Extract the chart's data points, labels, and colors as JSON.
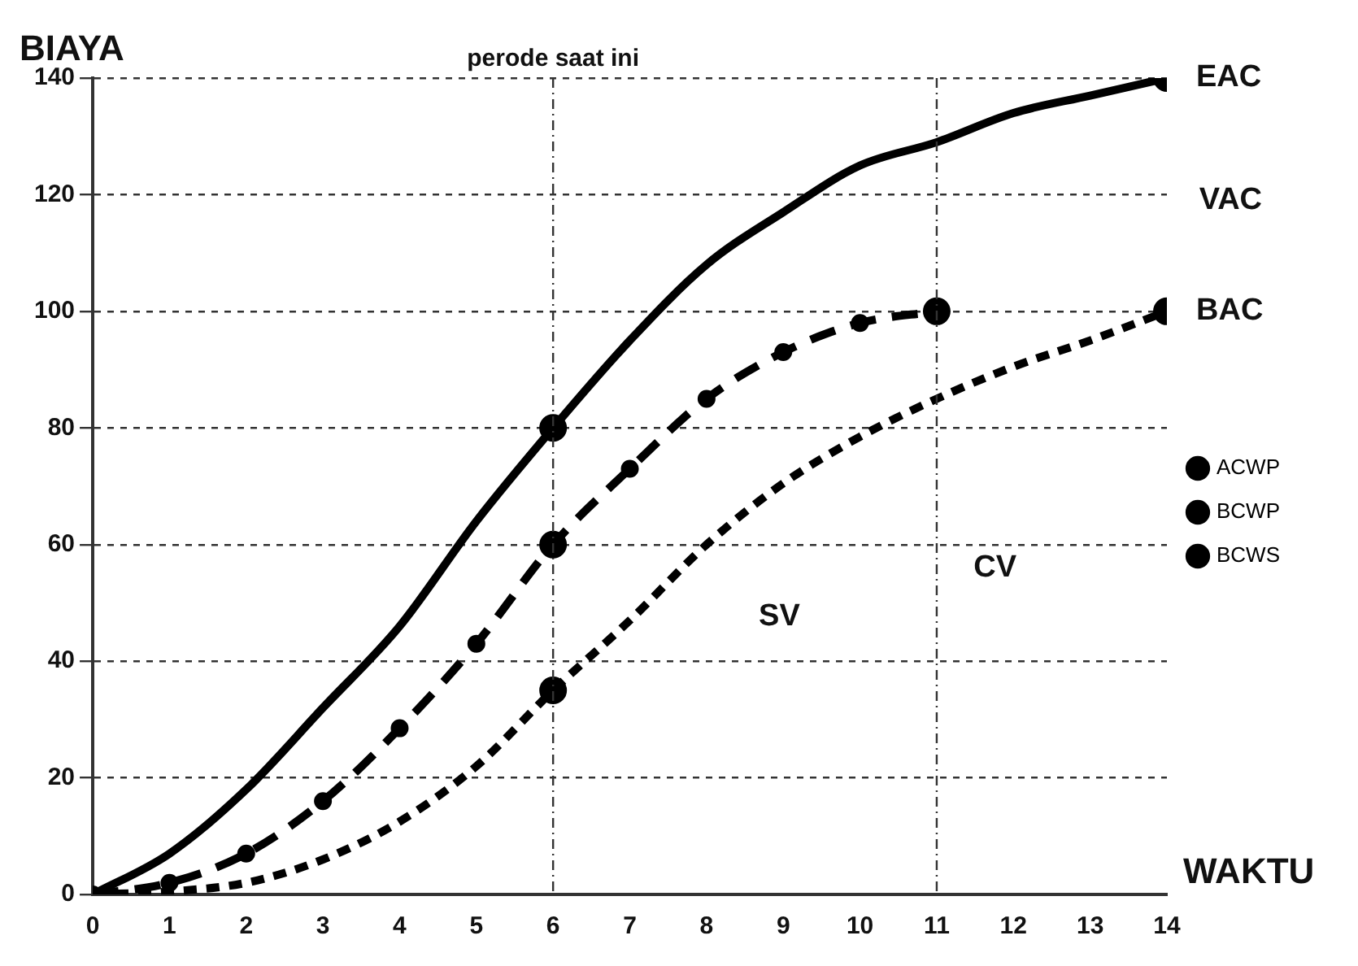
{
  "chart_data": {
    "type": "line",
    "xlabel": "WAKTU",
    "ylabel": "BIAYA",
    "x": [
      0,
      1,
      2,
      3,
      4,
      5,
      6,
      7,
      8,
      9,
      10,
      11,
      12,
      13,
      14
    ],
    "series": [
      {
        "name": "ACWP",
        "color": "#000000",
        "line_style": "solid",
        "marker": "none",
        "values": [
          0,
          7,
          18,
          32,
          46,
          64,
          80,
          95,
          108,
          117,
          125,
          129,
          134,
          137,
          140
        ]
      },
      {
        "name": "BCWP",
        "color": "#000000",
        "line_style": "dashed",
        "marker": "circle",
        "values": [
          0,
          2,
          7,
          16,
          28.5,
          43,
          60,
          73,
          85,
          93,
          98,
          100,
          null,
          null,
          null
        ]
      },
      {
        "name": "BCWS",
        "color": "#000000",
        "line_style": "dotted",
        "marker": "none",
        "values": [
          0,
          0.5,
          2,
          6,
          12.5,
          22,
          35,
          47,
          60,
          70.5,
          78.5,
          85,
          90.5,
          95,
          100
        ]
      }
    ],
    "xlim": [
      0,
      14
    ],
    "xticks": [
      0,
      1,
      2,
      3,
      4,
      5,
      6,
      7,
      8,
      9,
      10,
      11,
      12,
      13,
      14
    ],
    "ylim": [
      0,
      140
    ],
    "yticks": [
      0,
      20,
      40,
      60,
      80,
      100,
      120,
      140
    ],
    "grid": "y",
    "legend": "right",
    "ref_lines": [
      {
        "axis": "x",
        "value": 6,
        "label": "perode saat ini",
        "line_style": "dashed"
      },
      {
        "axis": "x",
        "value": 11,
        "line_style": "dashed"
      }
    ],
    "annotations": [
      {
        "text": "EAC",
        "x": 14,
        "y": 140
      },
      "VAC",
      {
        "text": "BAC",
        "x": 14,
        "y": 100
      },
      "SV",
      "CV"
    ]
  }
}
